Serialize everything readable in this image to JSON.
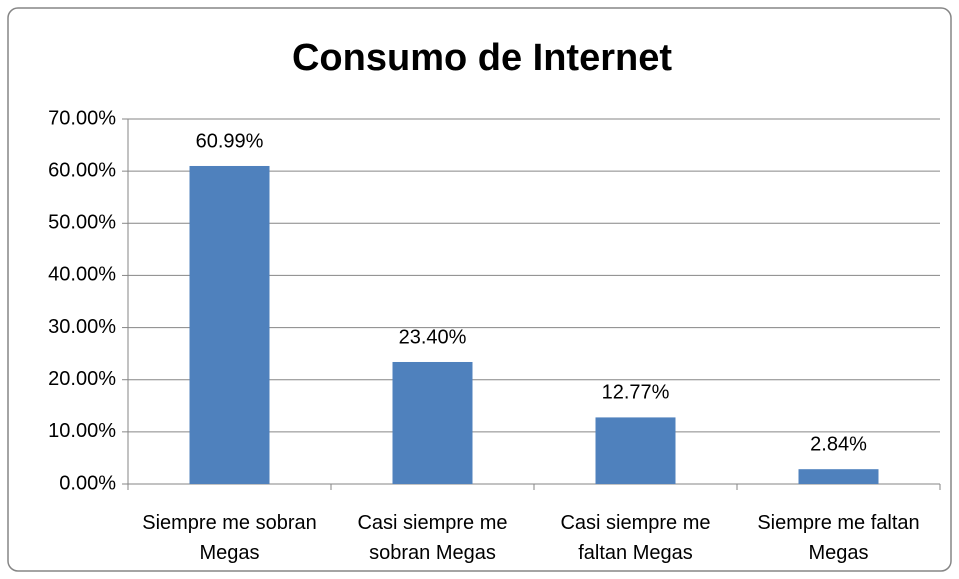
{
  "chart_data": {
    "type": "bar",
    "title": "Consumo de Internet",
    "categories": [
      "Siempre me sobran Megas",
      "Casi siempre me sobran Megas",
      "Casi siempre me faltan Megas",
      "Siempre me faltan Megas"
    ],
    "values": [
      60.99,
      23.4,
      12.77,
      2.84
    ],
    "value_labels": [
      "60.99%",
      "23.40%",
      "12.77%",
      "2.84%"
    ],
    "color": "#4f81bd",
    "ylim": [
      0,
      70
    ],
    "yticks": [
      {
        "value": 0,
        "label": "0.00%"
      },
      {
        "value": 10,
        "label": "10.00%"
      },
      {
        "value": 20,
        "label": "20.00%"
      },
      {
        "value": 30,
        "label": "30.00%"
      },
      {
        "value": 40,
        "label": "40.00%"
      },
      {
        "value": 50,
        "label": "50.00%"
      },
      {
        "value": 60,
        "label": "60.00%"
      },
      {
        "value": 70,
        "label": "70.00%"
      }
    ],
    "grid": true
  }
}
